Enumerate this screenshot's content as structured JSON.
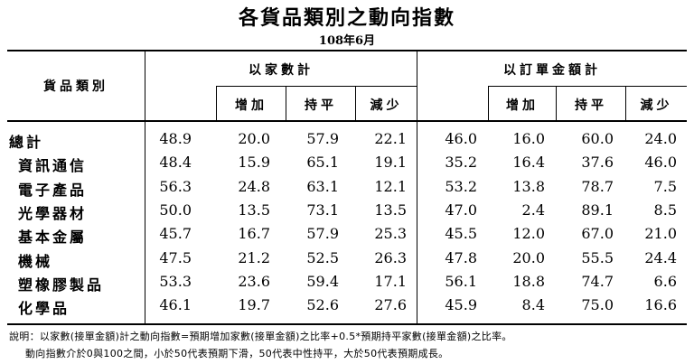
{
  "title": "各貨品類別之動向指數",
  "subtitle": "108年6月",
  "headers": {
    "category": "貨品類別",
    "group_company": "以家數計",
    "group_order": "以訂單金額計",
    "increase": "增加",
    "flat": "持平",
    "decrease": "減少"
  },
  "rows": [
    {
      "name": "總計",
      "c": [
        "48.9",
        "20.0",
        "57.9",
        "22.1"
      ],
      "o": [
        "46.0",
        "16.0",
        "60.0",
        "24.0"
      ]
    },
    {
      "name": "資訊通信",
      "c": [
        "48.4",
        "15.9",
        "65.1",
        "19.1"
      ],
      "o": [
        "35.2",
        "16.4",
        "37.6",
        "46.0"
      ]
    },
    {
      "name": "電子產品",
      "c": [
        "56.3",
        "24.8",
        "63.1",
        "12.1"
      ],
      "o": [
        "53.2",
        "13.8",
        "78.7",
        "7.5"
      ]
    },
    {
      "name": "光學器材",
      "c": [
        "50.0",
        "13.5",
        "73.1",
        "13.5"
      ],
      "o": [
        "47.0",
        "2.4",
        "89.1",
        "8.5"
      ]
    },
    {
      "name": "基本金屬",
      "c": [
        "45.7",
        "16.7",
        "57.9",
        "25.3"
      ],
      "o": [
        "45.5",
        "12.0",
        "67.0",
        "21.0"
      ]
    },
    {
      "name": "機械",
      "c": [
        "47.5",
        "21.2",
        "52.5",
        "26.3"
      ],
      "o": [
        "47.8",
        "20.0",
        "55.5",
        "24.4"
      ]
    },
    {
      "name": "塑橡膠製品",
      "c": [
        "53.3",
        "23.6",
        "59.4",
        "17.1"
      ],
      "o": [
        "56.1",
        "18.8",
        "74.7",
        "6.6"
      ]
    },
    {
      "name": "化學品",
      "c": [
        "46.1",
        "19.7",
        "52.6",
        "27.6"
      ],
      "o": [
        "45.9",
        "8.4",
        "75.0",
        "16.6"
      ]
    }
  ],
  "notes": {
    "line1": "說明：以家數(接單金額)計之動向指數=預期增加家數(接單金額)之比率+0.5*預期持平家數(接單金額)之比率。",
    "line2": "動向指數介於0與100之間，小於50代表預期下滑，50代表中性持平，大於50代表預期成長。"
  }
}
